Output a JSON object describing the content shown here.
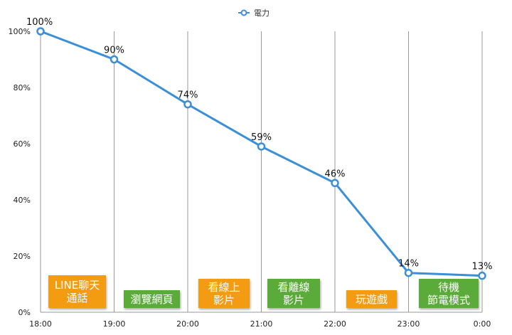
{
  "chart_data": {
    "type": "line",
    "categories": [
      "18:00",
      "19:00",
      "20:00",
      "21:00",
      "22:00",
      "23:00",
      "0:00"
    ],
    "series": [
      {
        "name": "電力",
        "values": [
          100,
          90,
          74,
          59,
          46,
          14,
          13
        ]
      }
    ],
    "data_labels": [
      "100%",
      "90%",
      "74%",
      "59%",
      "46%",
      "14%",
      "13%"
    ],
    "ylim": [
      0,
      100
    ],
    "y_ticks": [
      "0%",
      "20%",
      "40%",
      "60%",
      "80%",
      "100%"
    ],
    "y_tick_values": [
      0,
      20,
      40,
      60,
      80,
      100
    ],
    "grid": "vertical",
    "legend_position": "top-center",
    "line_color": "#3b8fd9",
    "annotations": [
      {
        "text": "LINE聊天\n通話",
        "color": "#f39c12"
      },
      {
        "text": "瀏覽網頁",
        "color": "#5aab3a"
      },
      {
        "text": "看線上\n影片",
        "color": "#f39c12"
      },
      {
        "text": "看離線\n影片",
        "color": "#5aab3a"
      },
      {
        "text": "玩遊戲",
        "color": "#f39c12"
      },
      {
        "text": "待機\n節電模式",
        "color": "#5aab3a"
      }
    ]
  }
}
